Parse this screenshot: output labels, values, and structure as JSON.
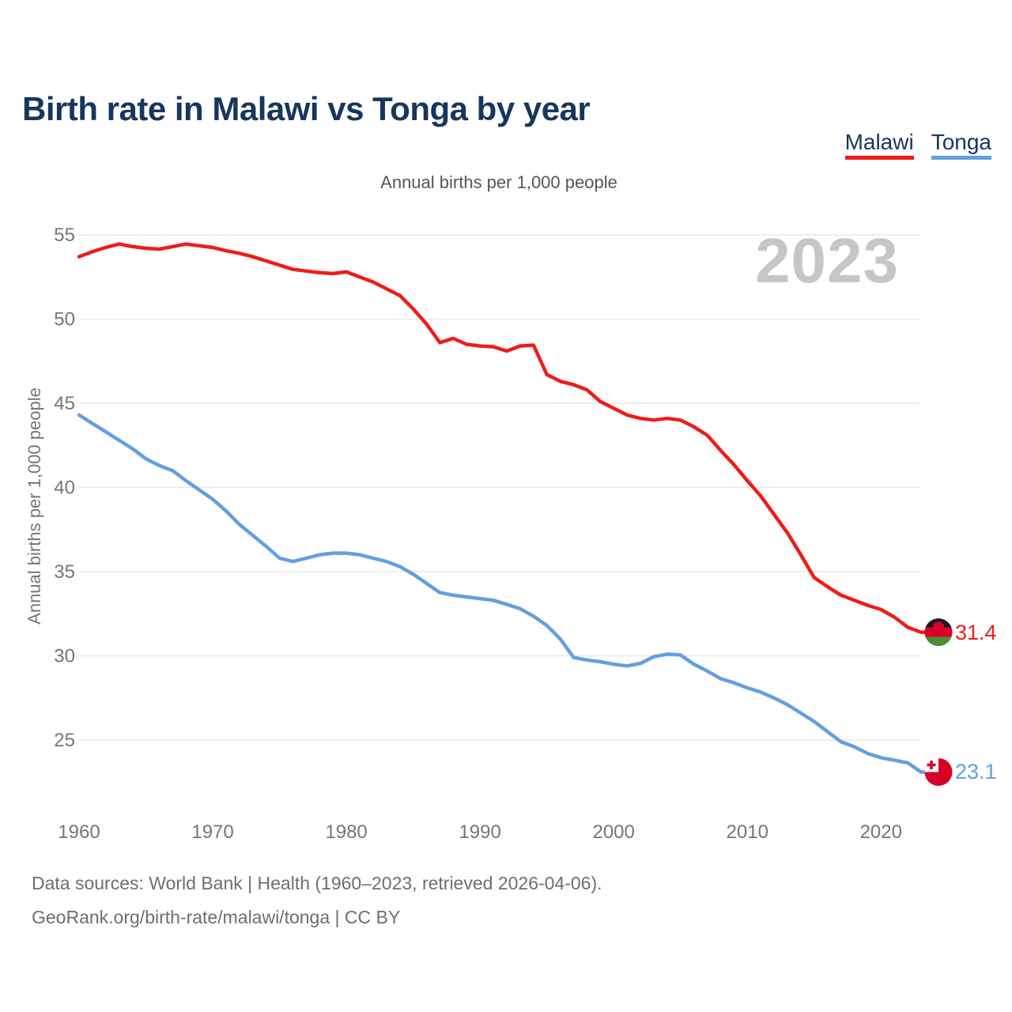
{
  "title": "Birth rate in Malawi vs Tonga by year",
  "subtitle": "Annual births per 1,000 people",
  "watermark": "2023",
  "legend": [
    {
      "label": "Malawi",
      "color": "#EE1C19"
    },
    {
      "label": "Tonga",
      "color": "#639FDF"
    }
  ],
  "y_axis": {
    "title": "Annual births per 1,000 people",
    "ticks": [
      55,
      50,
      45,
      40,
      35,
      30,
      25
    ]
  },
  "x_axis": {
    "ticks": [
      1960,
      1970,
      1980,
      1990,
      2000,
      2010,
      2020
    ]
  },
  "end_labels": [
    {
      "series": "Malawi",
      "value": "31.4"
    },
    {
      "series": "Tonga",
      "value": "23.1"
    }
  ],
  "footer": {
    "line1": "Data sources: World Bank | Health (1960–2023, retrieved 2026-04-06).",
    "line2": "GeoRank.org/birth-rate/malawi/tonga | CC BY"
  },
  "colors": {
    "title_navy": "#17365D",
    "axis_text": "#757575",
    "grid": "#E8E8E8",
    "watermark_gray": "#C6C6C6",
    "footer_gray": "#6E6E6E",
    "malawi_red": "#EE1C19",
    "tonga_blue": "#639FDF"
  },
  "flags": {
    "malawi": {
      "black": "#1A1A1A",
      "red": "#D80027",
      "green": "#4C8C35"
    },
    "tonga": {
      "red": "#D80027",
      "white": "#FFFFFF"
    }
  },
  "chart_data": {
    "type": "line",
    "title": "Birth rate in Malawi vs Tonga by year",
    "xlabel": "",
    "ylabel": "Annual births per 1,000 people",
    "x_start": 1960,
    "x_end": 2023,
    "ylim": [
      23,
      55
    ],
    "grid": true,
    "legend_position": "top-right",
    "series": [
      {
        "name": "Malawi",
        "color": "#EE1C19",
        "end_label": 31.4,
        "values": [
          53.7,
          54.0,
          54.25,
          54.45,
          54.3,
          54.2,
          54.15,
          54.3,
          54.45,
          54.35,
          54.25,
          54.05,
          53.9,
          53.7,
          53.45,
          53.2,
          52.95,
          52.85,
          52.75,
          52.7,
          52.8,
          52.5,
          52.2,
          51.8,
          51.4,
          50.6,
          49.7,
          48.6,
          48.85,
          48.5,
          48.4,
          48.35,
          48.1,
          48.4,
          48.45,
          46.7,
          46.3,
          46.1,
          45.8,
          45.1,
          44.7,
          44.3,
          44.1,
          44.0,
          44.1,
          44.0,
          43.6,
          43.1,
          42.2,
          41.35,
          40.4,
          39.5,
          38.4,
          37.3,
          36.0,
          34.65,
          34.1,
          33.6,
          33.3,
          33.0,
          32.75,
          32.3,
          31.7,
          31.4
        ]
      },
      {
        "name": "Tonga",
        "color": "#639FDF",
        "end_label": 23.1,
        "values": [
          44.3,
          43.8,
          43.3,
          42.8,
          42.3,
          41.7,
          41.3,
          41.0,
          40.4,
          39.85,
          39.3,
          38.6,
          37.8,
          37.15,
          36.5,
          35.8,
          35.6,
          35.8,
          36.0,
          36.1,
          36.1,
          36.0,
          35.8,
          35.6,
          35.3,
          34.85,
          34.3,
          33.75,
          33.6,
          33.5,
          33.4,
          33.3,
          33.05,
          32.8,
          32.35,
          31.8,
          31.0,
          29.9,
          29.75,
          29.65,
          29.5,
          29.4,
          29.55,
          29.95,
          30.1,
          30.05,
          29.5,
          29.1,
          28.65,
          28.4,
          28.1,
          27.85,
          27.5,
          27.1,
          26.6,
          26.1,
          25.5,
          24.9,
          24.6,
          24.2,
          23.95,
          23.8,
          23.65,
          23.1
        ]
      }
    ]
  }
}
